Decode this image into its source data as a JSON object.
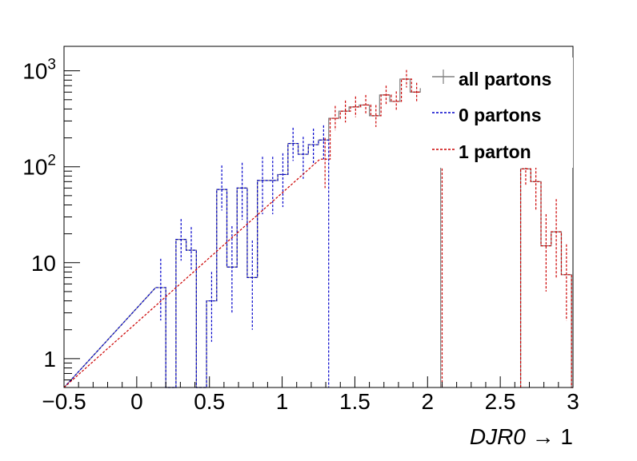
{
  "chart_data": {
    "type": "histogram",
    "x_axis": {
      "label": "DJR0 → 1",
      "label_italic_part": "DJR0",
      "label_rest": " → 1",
      "range": [
        -0.5,
        3.0
      ],
      "ticks": [
        -0.5,
        0,
        0.5,
        1,
        1.5,
        2,
        2.5,
        3
      ],
      "tick_labels": [
        "−0.5",
        "0",
        "0.5",
        "1",
        "1.5",
        "2",
        "2.5",
        "3"
      ]
    },
    "y_axis": {
      "scale": "log",
      "range": [
        0.5,
        1800
      ],
      "major_ticks": [
        {
          "value": 1,
          "base": "1",
          "exp": ""
        },
        {
          "value": 10,
          "base": "10",
          "exp": ""
        },
        {
          "value": 100,
          "base": "10",
          "exp": "2"
        },
        {
          "value": 1000,
          "base": "10",
          "exp": "3"
        }
      ]
    },
    "bin_width": 0.07,
    "legend": {
      "position": "top-right",
      "entries": [
        {
          "label": "all partons",
          "color": "#808080",
          "style": "solid"
        },
        {
          "label": "0 partons",
          "color": "#0000cc",
          "style": "dashed"
        },
        {
          "label": "1 parton",
          "color": "#cc0000",
          "style": "dashed"
        }
      ]
    },
    "series": [
      {
        "name": "0 partons",
        "color": "#0000cc",
        "dash": "3,2",
        "x_start": 0.13,
        "values": [
          5.5,
          0,
          17.5,
          13.5,
          0,
          4,
          58,
          9,
          60,
          7,
          72,
          72,
          83,
          175,
          135,
          170,
          190
        ],
        "errors_up": [
          5.5,
          0,
          11,
          10,
          0,
          4,
          45,
          15,
          50,
          10,
          55,
          55,
          55,
          80,
          70,
          80,
          80
        ],
        "errors_dn": [
          3,
          0,
          7,
          5,
          0,
          2.5,
          23,
          6,
          32,
          5,
          40,
          40,
          45,
          60,
          60,
          65,
          70
        ]
      },
      {
        "name": "1 parton",
        "color": "#cc0000",
        "dash": "3,2",
        "x_start": 1.26,
        "values": [
          120,
          320,
          380,
          420,
          440,
          340,
          560,
          480,
          820,
          600,
          650,
          560
        ],
        "errors_up": [
          80,
          110,
          110,
          120,
          120,
          100,
          140,
          130,
          200,
          150,
          150,
          140
        ],
        "errors_dn": [
          60,
          80,
          90,
          90,
          90,
          80,
          110,
          100,
          150,
          120,
          120,
          110
        ],
        "tail_x_start": 2.64,
        "tail_values": [
          95,
          70,
          15,
          21,
          7.5
        ],
        "tail_errors_up": [
          40,
          50,
          17,
          25,
          8
        ],
        "tail_errors_dn": [
          30,
          35,
          10,
          14,
          5
        ]
      },
      {
        "name": "all partons",
        "color": "#808080",
        "dash": "",
        "x_start": 0.13,
        "values": [
          5.5,
          0,
          17.5,
          13.5,
          0,
          4,
          58,
          9,
          60,
          7,
          72,
          72,
          83,
          175,
          135,
          170,
          190,
          320,
          380,
          420,
          440,
          340,
          560,
          480,
          820,
          600,
          650,
          560
        ],
        "tail_x_start": 2.64,
        "tail_values": [
          95,
          70,
          15,
          21,
          7.5
        ]
      }
    ]
  }
}
